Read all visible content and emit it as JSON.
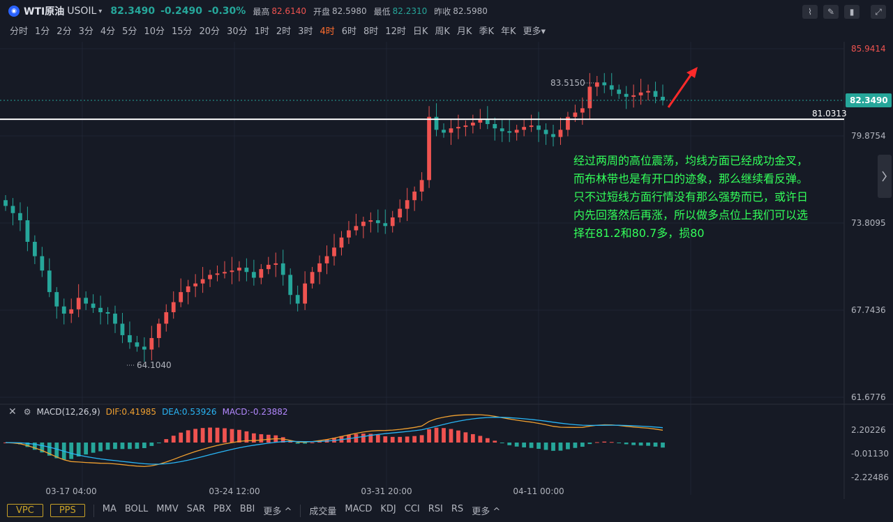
{
  "header": {
    "symbol_name": "WTI原油",
    "symbol_code": "USOIL",
    "price": "82.3490",
    "change": "-0.2490",
    "change_pct": "-0.30%",
    "high_label": "最高",
    "high": "82.6140",
    "open_label": "开盘",
    "open": "82.5980",
    "low_label": "最低",
    "low": "82.2310",
    "prev_label": "昨收",
    "prev": "82.5980"
  },
  "toolbar_icons": [
    "indicator-icon",
    "draw-icon",
    "candle-type-icon",
    "fullscreen-icon"
  ],
  "periods": [
    "分时",
    "1分",
    "2分",
    "3分",
    "4分",
    "5分",
    "10分",
    "15分",
    "20分",
    "30分",
    "1时",
    "2时",
    "3时",
    "4时",
    "6时",
    "8时",
    "12时",
    "日K",
    "周K",
    "月K",
    "季K",
    "年K",
    "更多"
  ],
  "active_period": "4时",
  "price_axis": {
    "labels": [
      "85.9414",
      "79.8754",
      "73.8095",
      "67.7436",
      "61.6776"
    ],
    "current": "82.3490",
    "line_price": "81.0313",
    "hi_mark": "83.5150",
    "lo_mark": "64.1040"
  },
  "annotation": "经过两周的高位震荡，均线方面已经成功金叉，而布林带也是有开口的迹象，那么继续看反弹。只不过短线方面行情没有那么强势而已，或许日内先回落然后再涨，所以做多点位上我们可以选择在81.2和80.7多，损80",
  "macd": {
    "name": "MACD(12,26,9)",
    "dif": "DIF:0.41985",
    "dea": "DEA:0.53926",
    "macd": "MACD:-0.23882",
    "axis": [
      "2.20226",
      "-0.01130",
      "-2.22486"
    ]
  },
  "time_axis": [
    "03-17 04:00",
    "03-24 12:00",
    "03-31 20:00",
    "04-11 00:00"
  ],
  "bottom": {
    "vpc": "VPC",
    "pps": "PPS",
    "main_indicators": [
      "MA",
      "BOLL",
      "MMV",
      "SAR",
      "PBX",
      "BBI",
      "更多"
    ],
    "sub_indicators": [
      "成交量",
      "MACD",
      "KDJ",
      "CCI",
      "RSI",
      "RS",
      "更多"
    ]
  },
  "colors": {
    "up": "#ef5350",
    "down": "#26a69a",
    "dif": "#f0a030",
    "dea": "#29b6f6",
    "annotation": "#33ff5a",
    "arrow": "#ff2a2a"
  },
  "chart_data": {
    "type": "candlestick",
    "close_path": [
      75.0,
      74.5,
      74.0,
      72.5,
      71.5,
      70.5,
      69.0,
      68.0,
      67.5,
      67.8,
      68.6,
      68.2,
      67.9,
      67.6,
      67.5,
      66.8,
      66.0,
      65.5,
      65.2,
      65.0,
      65.8,
      66.8,
      67.6,
      68.3,
      69.0,
      69.4,
      69.6,
      69.9,
      70.2,
      70.3,
      70.4,
      70.5,
      70.7,
      70.4,
      70.0,
      70.6,
      70.9,
      71.0,
      70.2,
      68.8,
      68.2,
      69.6,
      70.4,
      71.0,
      71.5,
      72.1,
      72.8,
      73.3,
      73.6,
      73.9,
      74.0,
      73.8,
      73.6,
      74.2,
      74.8,
      75.4,
      76.0,
      76.8,
      81.2,
      80.3,
      80.1,
      80.4,
      80.5,
      80.6,
      80.8,
      81.0,
      80.7,
      80.4,
      80.2,
      80.1,
      80.3,
      80.5,
      80.6,
      80.3,
      80.0,
      79.8,
      80.3,
      81.2,
      81.5,
      81.8,
      83.3,
      83.6,
      83.4,
      83.1,
      82.8,
      82.6,
      82.7,
      82.9,
      83.0,
      82.6,
      82.35
    ],
    "ohlc_rule": "generated along close_path",
    "price_axis_ticks": [
      85.9414,
      79.8754,
      73.8095,
      67.7436,
      61.6776
    ],
    "ylim": [
      61.6776,
      85.9414
    ],
    "horizontal_line": 81.0313,
    "current_price": 82.349,
    "max_label": 83.515,
    "min_label": 64.104,
    "macd_axis_ticks": [
      2.20226,
      -0.0113,
      -2.22486
    ]
  }
}
